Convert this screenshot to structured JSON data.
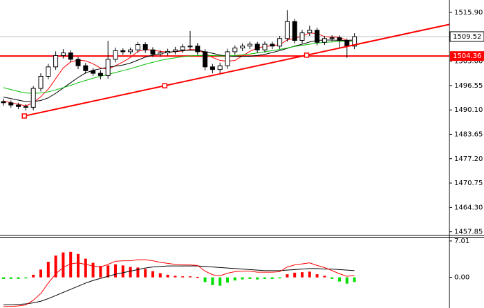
{
  "chart_data": [
    {
      "type": "candlestick",
      "open": [
        1492.3,
        1492.0,
        1491.4,
        1491.0,
        1490.8,
        1495.8,
        1499.0,
        1501.5,
        1504.5,
        1505.2,
        1503.5,
        1501.8,
        1500.5,
        1499.8,
        1499.2,
        1503.5,
        1505.8,
        1505.5,
        1506.0,
        1507.4,
        1506.0,
        1504.9,
        1505.2,
        1505.6,
        1506.0,
        1506.8,
        1507.0,
        1505.5,
        1501.5,
        1500.8,
        1501.8,
        1505.5,
        1506.5,
        1507.0,
        1507.5,
        1506.0,
        1507.5,
        1507.0,
        1509.0,
        1513.5,
        1508.5,
        1510.5,
        1511.2,
        1508.0,
        1509.0,
        1509.2,
        1508.5,
        1507.0
      ],
      "high": [
        1493.1,
        1492.6,
        1492.0,
        1491.6,
        1496.4,
        1499.8,
        1502.3,
        1505.6,
        1506.2,
        1505.9,
        1504.1,
        1502.5,
        1501.2,
        1500.6,
        1508.4,
        1506.6,
        1506.4,
        1506.6,
        1508.1,
        1508.0,
        1506.7,
        1505.9,
        1506.3,
        1506.8,
        1507.5,
        1511.0,
        1507.8,
        1506.2,
        1502.3,
        1502.6,
        1506.3,
        1507.2,
        1507.7,
        1508.2,
        1508.1,
        1508.2,
        1508.2,
        1509.7,
        1516.5,
        1514.2,
        1511.3,
        1512.4,
        1511.9,
        1509.7,
        1509.9,
        1509.8,
        1509.0,
        1510.4
      ],
      "low": [
        1491.2,
        1490.7,
        1490.3,
        1489.9,
        1490.0,
        1495.0,
        1498.2,
        1500.7,
        1503.7,
        1502.7,
        1500.9,
        1499.7,
        1499.1,
        1498.2,
        1498.4,
        1502.7,
        1504.7,
        1504.8,
        1505.2,
        1505.2,
        1504.1,
        1504.2,
        1504.5,
        1504.8,
        1505.2,
        1506.0,
        1504.7,
        1500.6,
        1499.8,
        1499.8,
        1501.0,
        1504.7,
        1505.7,
        1506.2,
        1505.2,
        1505.3,
        1506.2,
        1506.2,
        1508.2,
        1507.7,
        1507.7,
        1509.7,
        1507.2,
        1507.3,
        1508.2,
        1506.5,
        1503.9,
        1506.2
      ],
      "close": [
        1492.0,
        1491.4,
        1491.0,
        1490.8,
        1495.8,
        1499.0,
        1501.5,
        1504.5,
        1505.2,
        1503.5,
        1501.8,
        1500.5,
        1499.8,
        1499.2,
        1503.5,
        1505.8,
        1505.5,
        1506.0,
        1507.4,
        1506.0,
        1504.9,
        1505.2,
        1505.6,
        1506.0,
        1506.8,
        1507.0,
        1505.5,
        1501.5,
        1500.8,
        1501.8,
        1505.5,
        1506.5,
        1507.0,
        1507.5,
        1506.0,
        1507.5,
        1507.0,
        1509.0,
        1513.5,
        1508.5,
        1510.5,
        1511.2,
        1508.0,
        1509.0,
        1509.2,
        1508.5,
        1507.0,
        1509.5
      ],
      "bull_color": "#ffffff",
      "bear_color": "#000000",
      "moving_averages": [
        {
          "color": "#ff0000",
          "values": [
            1492.5,
            1492.0,
            1491.6,
            1491.2,
            1492.0,
            1493.6,
            1495.6,
            1498.4,
            1501.2,
            1502.8,
            1503.3,
            1503.1,
            1502.3,
            1501.2,
            1500.9,
            1501.8,
            1502.8,
            1504.0,
            1505.6,
            1506.1,
            1505.9,
            1505.6,
            1505.4,
            1505.5,
            1505.7,
            1506.1,
            1506.0,
            1505.1,
            1504.0,
            1503.2,
            1503.0,
            1503.2,
            1504.4,
            1505.6,
            1506.5,
            1506.9,
            1507.1,
            1507.4,
            1508.6,
            1509.1,
            1509.6,
            1510.5,
            1510.3,
            1509.5,
            1509.4,
            1509.3,
            1508.5,
            1508.6
          ]
        },
        {
          "color": "#000000",
          "values": [
            1493.5,
            1493.1,
            1492.7,
            1492.3,
            1492.3,
            1492.6,
            1493.3,
            1494.5,
            1495.9,
            1497.3,
            1498.7,
            1499.9,
            1500.6,
            1501.0,
            1501.4,
            1501.7,
            1502.0,
            1502.5,
            1503.3,
            1504.1,
            1504.6,
            1505.0,
            1505.3,
            1505.6,
            1505.8,
            1505.9,
            1505.9,
            1505.5,
            1505.1,
            1504.6,
            1504.4,
            1504.3,
            1504.3,
            1504.3,
            1504.5,
            1504.8,
            1505.3,
            1505.8,
            1506.4,
            1507.0,
            1507.5,
            1508.1,
            1508.5,
            1508.6,
            1508.6,
            1508.5,
            1508.5,
            1508.6
          ]
        },
        {
          "color": "#00c000",
          "values": [
            1496.0,
            1495.5,
            1495.0,
            1494.6,
            1494.5,
            1494.6,
            1494.9,
            1495.4,
            1496.0,
            1496.6,
            1497.3,
            1497.9,
            1498.5,
            1499.0,
            1499.5,
            1500.0,
            1500.5,
            1501.0,
            1501.6,
            1502.2,
            1502.7,
            1503.2,
            1503.6,
            1503.9,
            1504.2,
            1504.4,
            1504.5,
            1504.5,
            1504.5,
            1504.4,
            1504.4,
            1504.5,
            1504.7,
            1504.9,
            1505.2,
            1505.5,
            1505.8,
            1506.1,
            1506.5,
            1506.9,
            1507.2,
            1507.5,
            1507.8,
            1508.0,
            1508.1,
            1508.2,
            1508.2,
            1508.3
          ]
        }
      ],
      "hline": {
        "value": 1504.36,
        "color": "#ff0000"
      },
      "price_line": 1509.52,
      "trendline": {
        "x": [
          2.8,
          21.6,
          40.6
        ],
        "y": [
          1488.5,
          1496.5,
          1504.6
        ],
        "color": "#ff0000"
      },
      "ylim": [
        1457.05,
        1519.2
      ],
      "yticks": [
        {
          "value": 1515.9,
          "label": "1515.90"
        },
        {
          "value": 1503,
          "label": "1503.00"
        },
        1496.55,
        {
          "value": 1490.1,
          "label": "1490.10"
        },
        1483.65,
        {
          "value": 1477.2,
          "label": "1477.20"
        },
        1470.75,
        {
          "value": 1464.3,
          "label": "1464.30"
        },
        1457.85
      ]
    },
    {
      "type": "macd",
      "histogram": [
        -0.3,
        -0.3,
        -0.3,
        -0.2,
        0.5,
        1.5,
        3.0,
        4.2,
        4.8,
        4.9,
        4.5,
        3.6,
        2.8,
        2.2,
        2.3,
        2.5,
        2.3,
        2.0,
        1.9,
        1.6,
        1.2,
        0.8,
        0.5,
        0.3,
        0.2,
        0.2,
        0.1,
        -0.9,
        -1.5,
        -1.6,
        -1.0,
        -0.6,
        -0.4,
        -0.3,
        -0.4,
        -0.3,
        -0.3,
        -0.2,
        0.6,
        0.9,
        1.0,
        1.1,
        0.6,
        0.3,
        -0.3,
        -0.8,
        -1.2,
        -0.9
      ],
      "positive_color": "#ff0000",
      "negative_color": "#00e000",
      "lines": [
        {
          "color": "#000000",
          "values": [
            -5.3,
            -5.3,
            -5.2,
            -5.1,
            -4.9,
            -4.6,
            -4.1,
            -3.5,
            -2.9,
            -2.3,
            -1.7,
            -1.1,
            -0.6,
            -0.2,
            0.2,
            0.6,
            0.9,
            1.2,
            1.5,
            1.8,
            2.0,
            2.1,
            2.2,
            2.2,
            2.2,
            2.2,
            2.2,
            2.1,
            2.0,
            1.9,
            1.8,
            1.7,
            1.6,
            1.5,
            1.4,
            1.3,
            1.3,
            1.3,
            1.4,
            1.5,
            1.6,
            1.7,
            1.7,
            1.6,
            1.6,
            1.5,
            1.4,
            1.3
          ]
        },
        {
          "color": "#ff0000",
          "values": [
            -5.6,
            -5.6,
            -5.5,
            -5.3,
            -4.4,
            -3.1,
            -1.1,
            0.7,
            1.9,
            2.6,
            2.8,
            2.5,
            2.2,
            2.0,
            2.5,
            3.1,
            3.2,
            3.2,
            3.4,
            3.4,
            3.2,
            2.9,
            2.7,
            2.5,
            2.4,
            2.4,
            2.3,
            1.2,
            0.5,
            0.3,
            0.8,
            1.1,
            1.2,
            1.2,
            1.0,
            1.0,
            1.0,
            1.1,
            2.0,
            2.4,
            2.6,
            2.8,
            2.3,
            1.9,
            1.3,
            0.7,
            0.2,
            0.4
          ]
        }
      ],
      "ylim": [
        -5.9,
        7.8
      ],
      "yticks": [
        7.01,
        {
          "value": 0,
          "label": "0.00"
        }
      ]
    }
  ]
}
